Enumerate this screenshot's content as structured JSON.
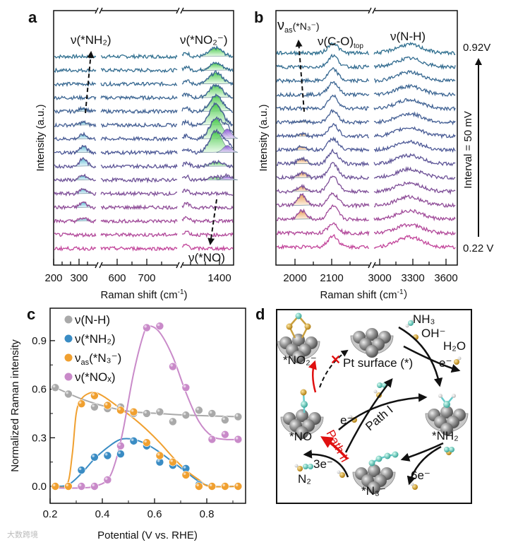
{
  "panels": {
    "a": {
      "label": "a",
      "ylabel": "Intensity (a.u.)",
      "xlabel": "Raman shift (cm",
      "xlabel_sup": "-1",
      "xlabel_end": ")",
      "xticks": [
        "200",
        "300",
        "600",
        "700",
        "1400"
      ],
      "ann_nh2": "ν(*NH₂)",
      "ann_no2": "ν(*NO₂⁻)",
      "ann_no": "ν(*NO)"
    },
    "b": {
      "label": "b",
      "ylabel": "Intensity (a.u.)",
      "xlabel": "Raman shift (cm",
      "xlabel_sup": "-1",
      "xlabel_end": "）",
      "xticks": [
        "2000",
        "2100",
        "3000",
        "3300",
        "3600"
      ],
      "ann_n3": "ν",
      "ann_n3_sub": "as",
      "ann_n3_end": "(*N₃⁻)",
      "ann_co": "ν(C-O)",
      "ann_co_sub": "top",
      "ann_nh": "ν(N-H)",
      "top_potential": "0.92V",
      "bottom_potential": "0.22 V",
      "interval": "Interval = 50 mV"
    },
    "c": {
      "label": "c"
    },
    "d": {
      "label": "d",
      "labels": {
        "no2": "*NO₂⁻",
        "pt": "Pt surface (*)",
        "nh3": "NH₃",
        "oh": "OH⁻",
        "h2o": "H₂O",
        "e1": "e⁻",
        "nh2": "*NH₂",
        "no": "*NO",
        "e2": "e⁻",
        "path1": "Path I",
        "path2": "Path II",
        "n2": "N₂",
        "e3": "3e⁻",
        "n3": "*N₃⁻",
        "e6": "6e⁻"
      }
    }
  },
  "spectra": {
    "potentials_top_to_bottom": [
      0.92,
      0.87,
      0.82,
      0.77,
      0.72,
      0.67,
      0.62,
      0.57,
      0.52,
      0.47,
      0.42,
      0.37,
      0.32,
      0.27,
      0.22
    ],
    "colors": {
      "top": "#2f6f8f",
      "mid": "#4c5896",
      "bottom": "#c2449a"
    },
    "a_nh2_peak": [
      0,
      0,
      0,
      0,
      0.25,
      0.2,
      0.3,
      0.45,
      0.55,
      0.3,
      0.35,
      0.35,
      0.2,
      0,
      0
    ],
    "a_no2_peak": [
      0.6,
      0.5,
      0.8,
      0.9,
      1.1,
      1.5,
      1.4,
      1.5,
      0.3,
      0.2,
      0,
      0,
      0,
      0,
      0
    ],
    "a_no_peak": [
      0,
      0,
      0,
      0,
      0,
      0,
      0.7,
      0.5,
      0,
      0.25,
      0,
      0,
      0,
      0,
      0
    ],
    "b_n3_peak": [
      0,
      0,
      0,
      0,
      0,
      0.1,
      0.15,
      0.25,
      0.4,
      0.35,
      0.35,
      0.75,
      0.6,
      0,
      0
    ],
    "b_co_peak": [
      0.7,
      0.8,
      0.8,
      0.9,
      0.9,
      0.8,
      0.8,
      0.8,
      0.9,
      1.0,
      1.1,
      0.8,
      0.9,
      0.7,
      0.8
    ],
    "b_nh_peak": [
      0.6,
      0.6,
      0.6,
      0.6,
      0.6,
      0.6,
      0.6,
      0.6,
      0.6,
      0.6,
      0.6,
      0.6,
      0.6,
      0.6,
      0.7
    ]
  },
  "chart_data": {
    "type": "scatter",
    "xlabel": "Potential (V vs. RHE)",
    "ylabel": "Normalized Raman intensity",
    "xlim": [
      0.2,
      0.95
    ],
    "ylim": [
      -0.1,
      1.04
    ],
    "xticks": [
      "0.2",
      "0.4",
      "0.6",
      "0.8"
    ],
    "yticks": [
      "0.0",
      "0.3",
      "0.6",
      "0.9"
    ],
    "legend_position": "top-left",
    "series": [
      {
        "name": "ν(N-H)",
        "color": "#a9a9a9",
        "x": [
          0.22,
          0.27,
          0.32,
          0.37,
          0.42,
          0.47,
          0.52,
          0.57,
          0.62,
          0.67,
          0.72,
          0.77,
          0.82,
          0.87,
          0.92
        ],
        "y": [
          0.61,
          0.57,
          0.51,
          0.49,
          0.48,
          0.49,
          0.45,
          0.45,
          0.46,
          0.4,
          0.44,
          0.47,
          0.45,
          0.41,
          0.43
        ],
        "fit": [
          [
            0.22,
            0.61
          ],
          [
            0.32,
            0.54
          ],
          [
            0.42,
            0.49
          ],
          [
            0.52,
            0.46
          ],
          [
            0.62,
            0.45
          ],
          [
            0.72,
            0.44
          ],
          [
            0.92,
            0.43
          ]
        ]
      },
      {
        "name": "ν(*NH₂)",
        "color": "#3a8cc4",
        "x": [
          0.22,
          0.27,
          0.32,
          0.37,
          0.42,
          0.47,
          0.52,
          0.57,
          0.62,
          0.67,
          0.72,
          0.77,
          0.82,
          0.87,
          0.92
        ],
        "y": [
          0,
          0,
          0.1,
          0.18,
          0.19,
          0.2,
          0.28,
          0.25,
          0.15,
          0.13,
          0.11,
          0.01,
          0,
          0,
          0
        ],
        "fit": [
          [
            0.22,
            0
          ],
          [
            0.27,
            0.01
          ],
          [
            0.32,
            0.08
          ],
          [
            0.37,
            0.17
          ],
          [
            0.42,
            0.24
          ],
          [
            0.47,
            0.29
          ],
          [
            0.52,
            0.29
          ],
          [
            0.57,
            0.26
          ],
          [
            0.62,
            0.21
          ],
          [
            0.67,
            0.15
          ],
          [
            0.72,
            0.09
          ],
          [
            0.77,
            0.03
          ],
          [
            0.82,
            0
          ],
          [
            0.92,
            0
          ]
        ]
      },
      {
        "name": "ν",
        "sub": "as",
        "suffix": "(*N₃⁻)",
        "color": "#f0a030",
        "x": [
          0.22,
          0.27,
          0.32,
          0.37,
          0.42,
          0.47,
          0.52,
          0.57,
          0.62,
          0.67,
          0.72,
          0.77,
          0.82,
          0.87,
          0.92
        ],
        "y": [
          0,
          0,
          0.51,
          0.56,
          0.5,
          0.47,
          0.46,
          0.27,
          0.19,
          0.15,
          0.07,
          0,
          0,
          0,
          0
        ],
        "fit": [
          [
            0.22,
            0
          ],
          [
            0.265,
            0.01
          ],
          [
            0.285,
            0.2
          ],
          [
            0.3,
            0.45
          ],
          [
            0.32,
            0.54
          ],
          [
            0.36,
            0.58
          ],
          [
            0.4,
            0.56
          ],
          [
            0.47,
            0.48
          ],
          [
            0.52,
            0.42
          ],
          [
            0.57,
            0.35
          ],
          [
            0.62,
            0.27
          ],
          [
            0.67,
            0.18
          ],
          [
            0.72,
            0.1
          ],
          [
            0.77,
            0.04
          ],
          [
            0.81,
            0
          ],
          [
            0.92,
            0
          ]
        ]
      },
      {
        "name": "ν(*NOₓ)",
        "color": "#c98ac9",
        "x": [
          0.32,
          0.37,
          0.42,
          0.47,
          0.57,
          0.62,
          0.67,
          0.72,
          0.82,
          0.87,
          0.92
        ],
        "y": [
          0,
          0,
          0.04,
          0.25,
          0.98,
          0.99,
          0.74,
          0.61,
          0.29,
          0.32,
          0.29
        ],
        "fit": [
          [
            0.22,
            -0.01
          ],
          [
            0.32,
            -0.01
          ],
          [
            0.37,
            0
          ],
          [
            0.42,
            0.04
          ],
          [
            0.45,
            0.15
          ],
          [
            0.48,
            0.35
          ],
          [
            0.52,
            0.7
          ],
          [
            0.56,
            0.95
          ],
          [
            0.58,
            0.99
          ],
          [
            0.62,
            0.95
          ],
          [
            0.67,
            0.8
          ],
          [
            0.72,
            0.58
          ],
          [
            0.77,
            0.4
          ],
          [
            0.82,
            0.31
          ],
          [
            0.87,
            0.29
          ],
          [
            0.92,
            0.29
          ]
        ]
      }
    ]
  },
  "watermark": "大数跨境"
}
